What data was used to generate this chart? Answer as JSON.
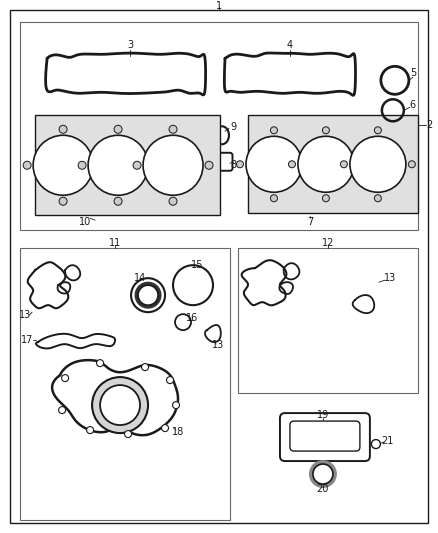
{
  "bg": "#ffffff",
  "pc": "#1a1a1a",
  "lc": "#1a1a1a",
  "fs": 7.0,
  "gray_fill": "#d8d8d8",
  "light_gray": "#eeeeee"
}
